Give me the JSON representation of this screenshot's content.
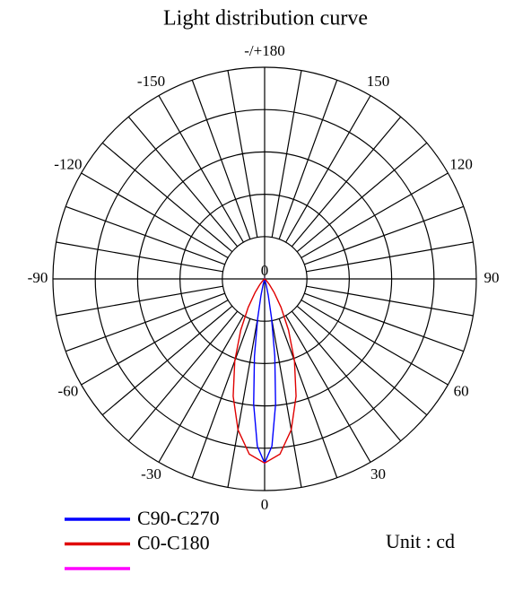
{
  "chart_data": {
    "type": "polar",
    "title": "Light distribution curve",
    "annotation": "Unit : cd",
    "rlim": [
      0,
      100
    ],
    "rticks": [
      0
    ],
    "rgrid": [
      20,
      40,
      60,
      80,
      100
    ],
    "thetagrid_step": 10,
    "thetaticks": [
      0,
      30,
      60,
      90,
      120,
      150,
      {
        "value": 180,
        "label": "-/+180"
      },
      -150,
      -120,
      -90,
      -60,
      -30
    ],
    "series": [
      {
        "name": "C90-C270",
        "color": "#0000ff",
        "theta": [
          -20,
          -15,
          -12.5,
          -10,
          -7.5,
          -5,
          -2.5,
          0,
          2.5,
          5,
          7.5,
          10,
          12.5,
          15,
          20
        ],
        "values": [
          0.2,
          2.7,
          7.9,
          18.8,
          36.8,
          59.4,
          79.1,
          87,
          79.1,
          59.4,
          36.8,
          18.8,
          7.9,
          2.7,
          0.2
        ]
      },
      {
        "name": "C0-C180",
        "color": "#e00000",
        "theta": [
          -50,
          -45,
          -40,
          -35,
          -30,
          -25,
          -20,
          -15,
          -10,
          -5,
          0,
          5,
          10,
          15,
          20,
          25,
          30,
          35,
          40,
          45,
          50
        ],
        "values": [
          0.4,
          1.4,
          3.6,
          7.9,
          15.5,
          26.7,
          41.2,
          57.4,
          72.4,
          83.1,
          87,
          83.1,
          72.4,
          57.4,
          41.2,
          26.7,
          15.5,
          7.9,
          3.6,
          1.4,
          0.4
        ]
      },
      {
        "name": null,
        "color": "#ff00ff",
        "theta": [],
        "values": []
      }
    ]
  }
}
